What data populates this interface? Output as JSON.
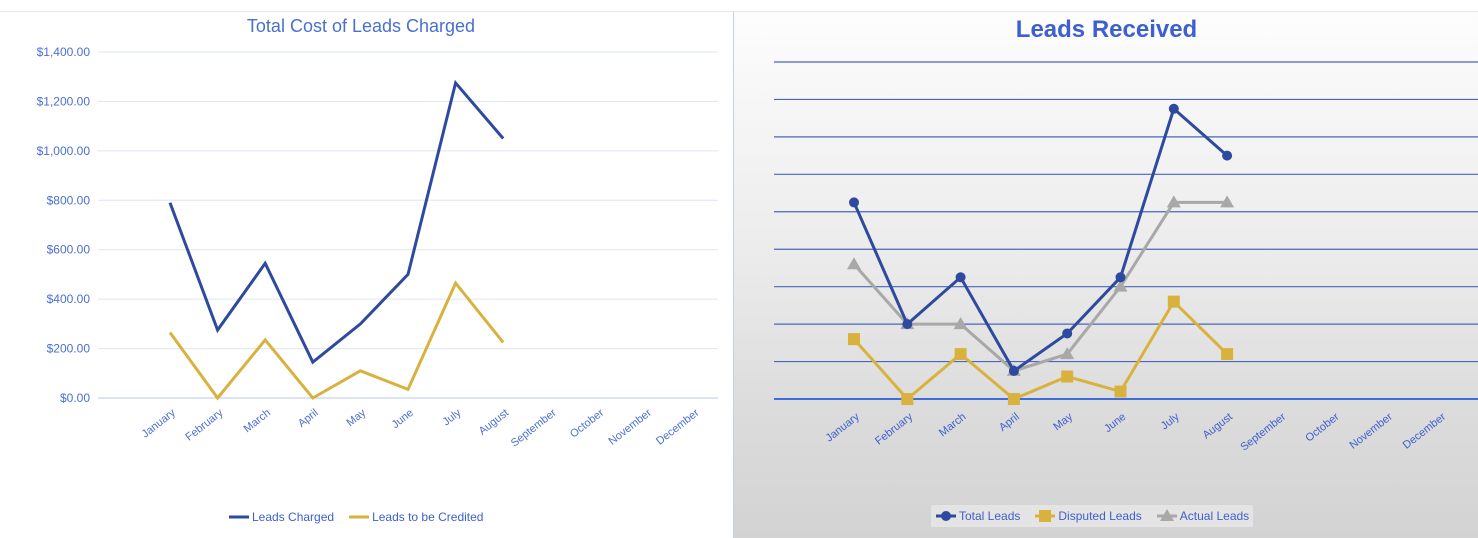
{
  "chart_data": [
    {
      "type": "line",
      "title": "Total Cost of Leads Charged",
      "categories": [
        "January",
        "February",
        "March",
        "April",
        "May",
        "June",
        "July",
        "August",
        "September",
        "October",
        "November",
        "December"
      ],
      "y_ticks": [
        "$0.00",
        "$200.00",
        "$400.00",
        "$600.00",
        "$800.00",
        "$1,000.00",
        "$1,200.00",
        "$1,400.00"
      ],
      "ylim": [
        0,
        1400
      ],
      "grid": true,
      "legend_position": "bottom",
      "series": [
        {
          "name": "Leads Charged",
          "color": "#2e4a9e",
          "values": [
            790,
            275,
            545,
            145,
            300,
            500,
            1275,
            1050,
            null,
            null,
            null,
            null
          ]
        },
        {
          "name": "Leads to be Credited",
          "color": "#d9b23e",
          "values": [
            265,
            0,
            235,
            0,
            110,
            35,
            465,
            225,
            null,
            null,
            null,
            null
          ]
        }
      ]
    },
    {
      "type": "line",
      "title": "Leads Received",
      "categories": [
        "January",
        "February",
        "March",
        "April",
        "May",
        "June",
        "July",
        "August",
        "September",
        "October",
        "November",
        "December"
      ],
      "ylim": [
        0,
        18
      ],
      "grid": true,
      "legend_position": "bottom",
      "series": [
        {
          "name": "Total Leads",
          "color": "#2e4a9e",
          "marker": "circle",
          "values": [
            10.5,
            4,
            6.5,
            1.5,
            3.5,
            6.5,
            15.5,
            13,
            null,
            null,
            null,
            null
          ]
        },
        {
          "name": "Disputed Leads",
          "color": "#d9b23e",
          "marker": "square",
          "values": [
            3.2,
            0,
            2.4,
            0,
            1.2,
            0.4,
            5.2,
            2.4,
            null,
            null,
            null,
            null
          ]
        },
        {
          "name": "Actual Leads",
          "color": "#a8a8a8",
          "marker": "triangle",
          "values": [
            7.2,
            4,
            4,
            1.5,
            2.4,
            6,
            10.5,
            10.5,
            null,
            null,
            null,
            null
          ]
        }
      ]
    }
  ]
}
